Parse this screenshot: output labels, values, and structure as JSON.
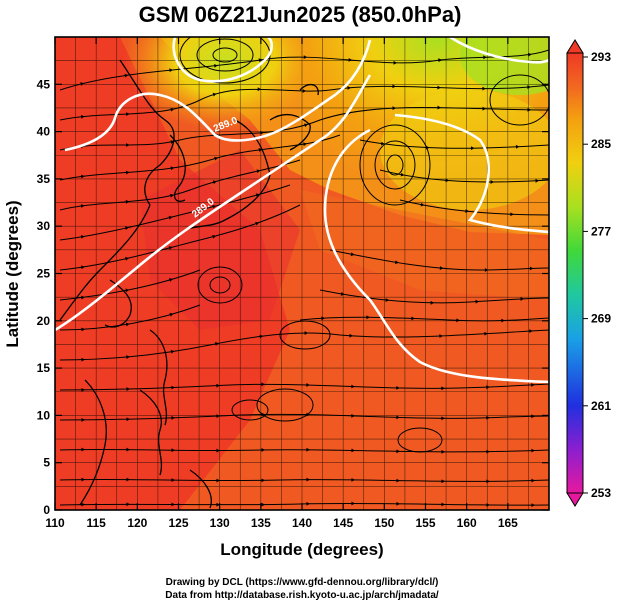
{
  "title": "GSM 06Z21Jun2025 (850.0hPa)",
  "x_axis": {
    "label": "Longitude (degrees)",
    "range": [
      110,
      170
    ],
    "ticks": [
      "110",
      "115",
      "120",
      "125",
      "130",
      "135",
      "140",
      "145",
      "150",
      "155",
      "160",
      "165"
    ]
  },
  "y_axis": {
    "label": "Latitude  (degrees)",
    "range": [
      0,
      50
    ],
    "ticks": [
      "0",
      "5",
      "10",
      "15",
      "20",
      "25",
      "30",
      "35",
      "40",
      "45"
    ]
  },
  "colorbar": {
    "ticks": [
      "293",
      "285",
      "277",
      "269",
      "261",
      "253"
    ],
    "range": [
      253,
      293
    ],
    "colors": [
      "#e8189e",
      "#5a1fd6",
      "#2040e8",
      "#1aa0e6",
      "#20c8a0",
      "#40d83a",
      "#a8e020",
      "#f0d010",
      "#f4a010",
      "#f26a20",
      "#ee3a26"
    ]
  },
  "credits": {
    "line1": "Drawing by DCL (https://www.gfd-dennou.org/library/dcl/)",
    "line2": "Data from http://database.rish.kyoto-u.ac.jp/arch/jmadata/"
  },
  "contour_labels": [
    "289.0",
    "289.0"
  ],
  "colors": {
    "warm": "#ee3a26",
    "mid": "#f26a20",
    "orange": "#f4a010",
    "yellow": "#f0d010",
    "green": "#a8e020",
    "contour": "#ffffff",
    "frame": "#000000"
  }
}
